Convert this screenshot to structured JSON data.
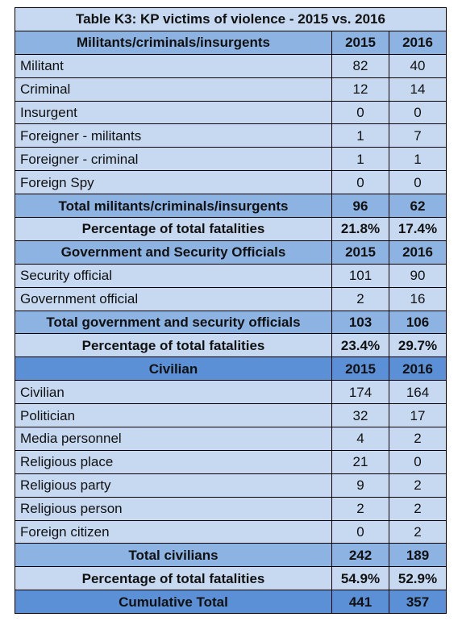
{
  "table": {
    "title": "Table K3: KP victims of violence - 2015 vs. 2016",
    "sections": [
      {
        "header": [
          "Militants/criminals/insurgents",
          "2015",
          "2016"
        ],
        "rows": [
          [
            "Militant",
            82,
            40
          ],
          [
            "Criminal",
            12,
            14
          ],
          [
            "Insurgent",
            0,
            0
          ],
          [
            "Foreigner - militants",
            1,
            7
          ],
          [
            "Foreigner - criminal",
            1,
            1
          ],
          [
            "Foreign Spy",
            0,
            0
          ]
        ],
        "total": [
          "Total militants/criminals/insurgents",
          96,
          62
        ],
        "percentage": [
          "Percentage of total fatalities",
          "21.8%",
          "17.4%"
        ]
      },
      {
        "header": [
          "Government and Security Officials",
          "2015",
          "2016"
        ],
        "rows": [
          [
            "Security official",
            101,
            90
          ],
          [
            "Government official",
            2,
            16
          ]
        ],
        "total": [
          "Total government and security officials",
          103,
          106
        ],
        "percentage": [
          "Percentage of total fatalities",
          "23.4%",
          "29.7%"
        ]
      },
      {
        "header": [
          "Civilian",
          "2015",
          "2016"
        ],
        "rows": [
          [
            "Civilian",
            174,
            164
          ],
          [
            "Politician",
            32,
            17
          ],
          [
            "Media personnel",
            4,
            2
          ],
          [
            "Religious place",
            21,
            0
          ],
          [
            "Religious party",
            9,
            2
          ],
          [
            "Religious person",
            2,
            2
          ],
          [
            "Foreign citizen",
            0,
            2
          ]
        ],
        "total": [
          "Total civilians",
          242,
          189
        ],
        "percentage": [
          "Percentage of total fatalities",
          "54.9%",
          "52.9%"
        ]
      }
    ],
    "cumulative": [
      "Cumulative Total",
      441,
      357
    ]
  }
}
